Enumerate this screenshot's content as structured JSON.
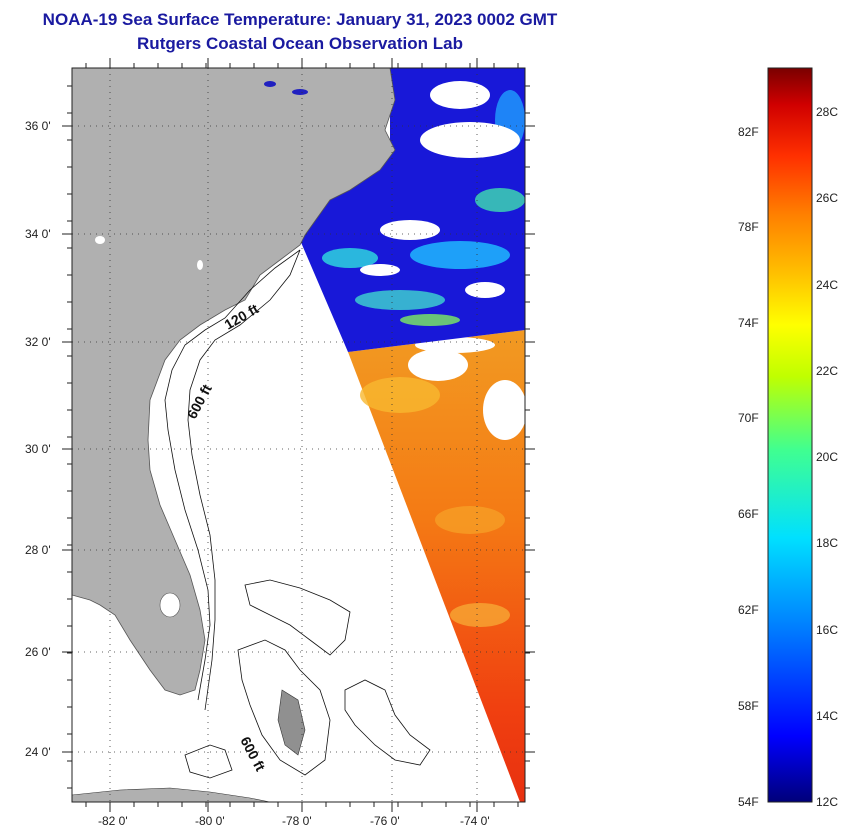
{
  "header": {
    "title": "NOAA-19 Sea Surface Temperature:  January 31, 2023 0002 GMT",
    "subtitle": "Rutgers Coastal Ocean Observation Lab"
  },
  "map": {
    "lat_labels": [
      "36 0'",
      "34 0'",
      "32 0'",
      "30 0'",
      "28 0'",
      "26 0'",
      "24 0'"
    ],
    "lon_labels": [
      "-82 0'",
      "-80 0'",
      "-78 0'",
      "-76 0'",
      "-74 0'"
    ],
    "contour_labels": [
      "120 ft",
      "600 ft",
      "600 ft"
    ],
    "land_color": "#b0b0b0",
    "grid": "dotted"
  },
  "colorbar": {
    "f_labels": [
      "82F",
      "78F",
      "74F",
      "70F",
      "66F",
      "62F",
      "58F",
      "54F"
    ],
    "c_labels": [
      "28C",
      "26C",
      "24C",
      "22C",
      "20C",
      "18C",
      "16C",
      "14C",
      "12C"
    ],
    "colors": [
      "#00007a",
      "#0000ff",
      "#0080ff",
      "#00e0ff",
      "#40ff90",
      "#c0ff00",
      "#ffff00",
      "#ffc000",
      "#ff8000",
      "#ff3000",
      "#d00000",
      "#7a0000"
    ]
  }
}
